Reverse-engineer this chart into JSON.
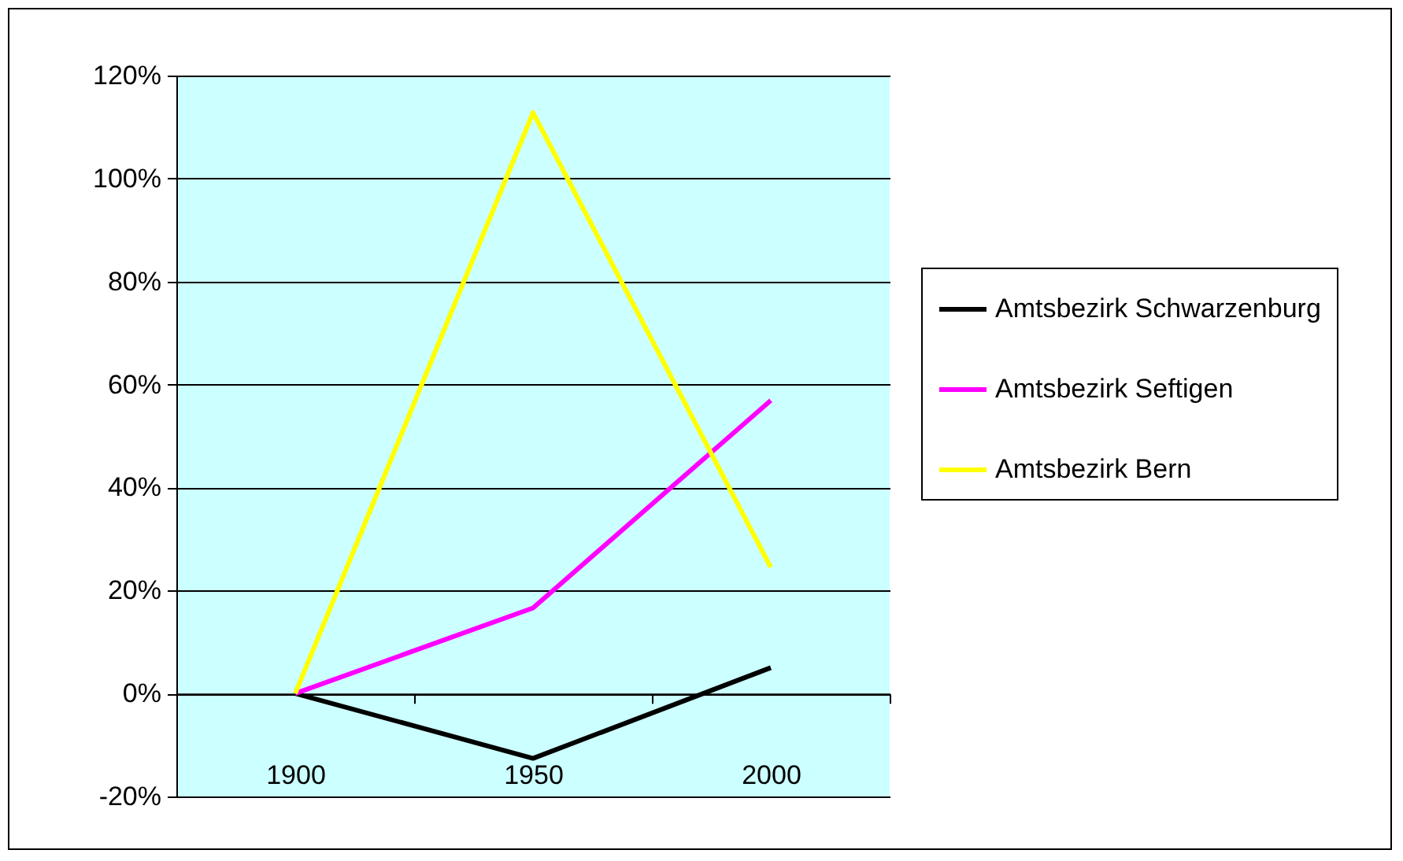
{
  "chart_data": {
    "type": "line",
    "categories": [
      "1900",
      "1950",
      "2000"
    ],
    "series": [
      {
        "name": "Amtsbezirk Schwarzenburg",
        "color": "#000000",
        "values": [
          0,
          -12.6,
          5.0
        ]
      },
      {
        "name": "Amtsbezirk Seftigen",
        "color": "#ff00ff",
        "values": [
          0,
          16.6,
          56.9
        ]
      },
      {
        "name": "Amtsbezirk Bern",
        "color": "#ffff00",
        "values": [
          0,
          112.8,
          24.5
        ]
      }
    ],
    "ylim": [
      -20,
      120
    ],
    "yticks": [
      {
        "value": -20,
        "label": "-20%"
      },
      {
        "value": 0,
        "label": "0%"
      },
      {
        "value": 20,
        "label": "20%"
      },
      {
        "value": 40,
        "label": "40%"
      },
      {
        "value": 60,
        "label": "60%"
      },
      {
        "value": 80,
        "label": "80%"
      },
      {
        "value": 100,
        "label": "100%"
      },
      {
        "value": 120,
        "label": "120%"
      }
    ],
    "grid": "y",
    "legend": "right",
    "marker": "none",
    "line_style": "solid"
  }
}
